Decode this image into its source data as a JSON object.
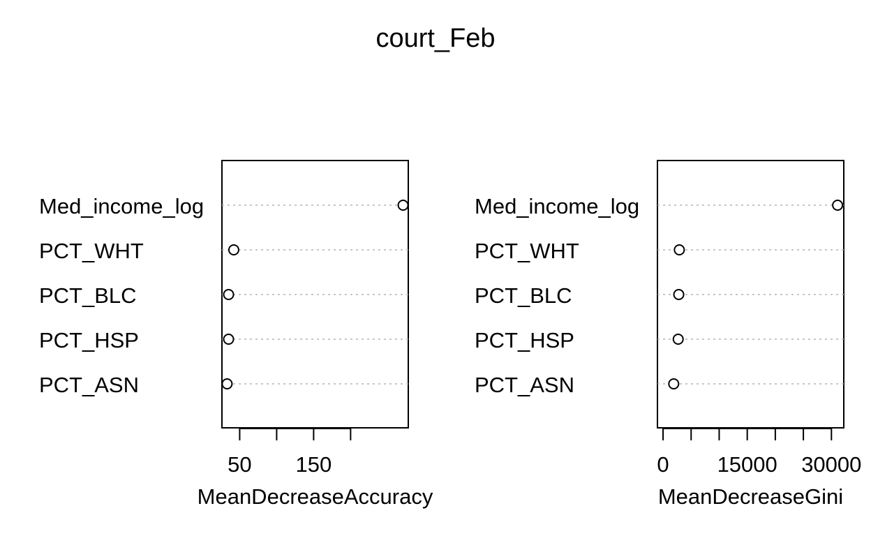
{
  "chart_data": [
    {
      "type": "scatter",
      "title": "court_Feb",
      "xlabel": "MeanDecreaseAccuracy",
      "ylabel": "",
      "categories": [
        "Med_income_log",
        "PCT_WHT",
        "PCT_BLC",
        "PCT_HSP",
        "PCT_ASN"
      ],
      "values": [
        271,
        42,
        35,
        35,
        33
      ],
      "x_ticks": [
        50,
        100,
        150,
        200
      ],
      "x_tick_labels": [
        "50",
        "",
        "150",
        ""
      ],
      "xlim": [
        26,
        278
      ],
      "grid": "dotted horizontal"
    },
    {
      "type": "scatter",
      "title": "court_Feb",
      "xlabel": "MeanDecreaseGini",
      "ylabel": "",
      "categories": [
        "Med_income_log",
        "PCT_WHT",
        "PCT_BLC",
        "PCT_HSP",
        "PCT_ASN"
      ],
      "values": [
        31100,
        2900,
        2800,
        2700,
        1900
      ],
      "x_ticks": [
        0,
        5000,
        10000,
        15000,
        20000,
        25000,
        30000
      ],
      "x_tick_labels": [
        "0",
        "",
        "",
        "15000",
        "",
        "",
        "30000"
      ],
      "xlim": [
        -1000,
        32200
      ],
      "grid": "dotted horizontal"
    }
  ]
}
